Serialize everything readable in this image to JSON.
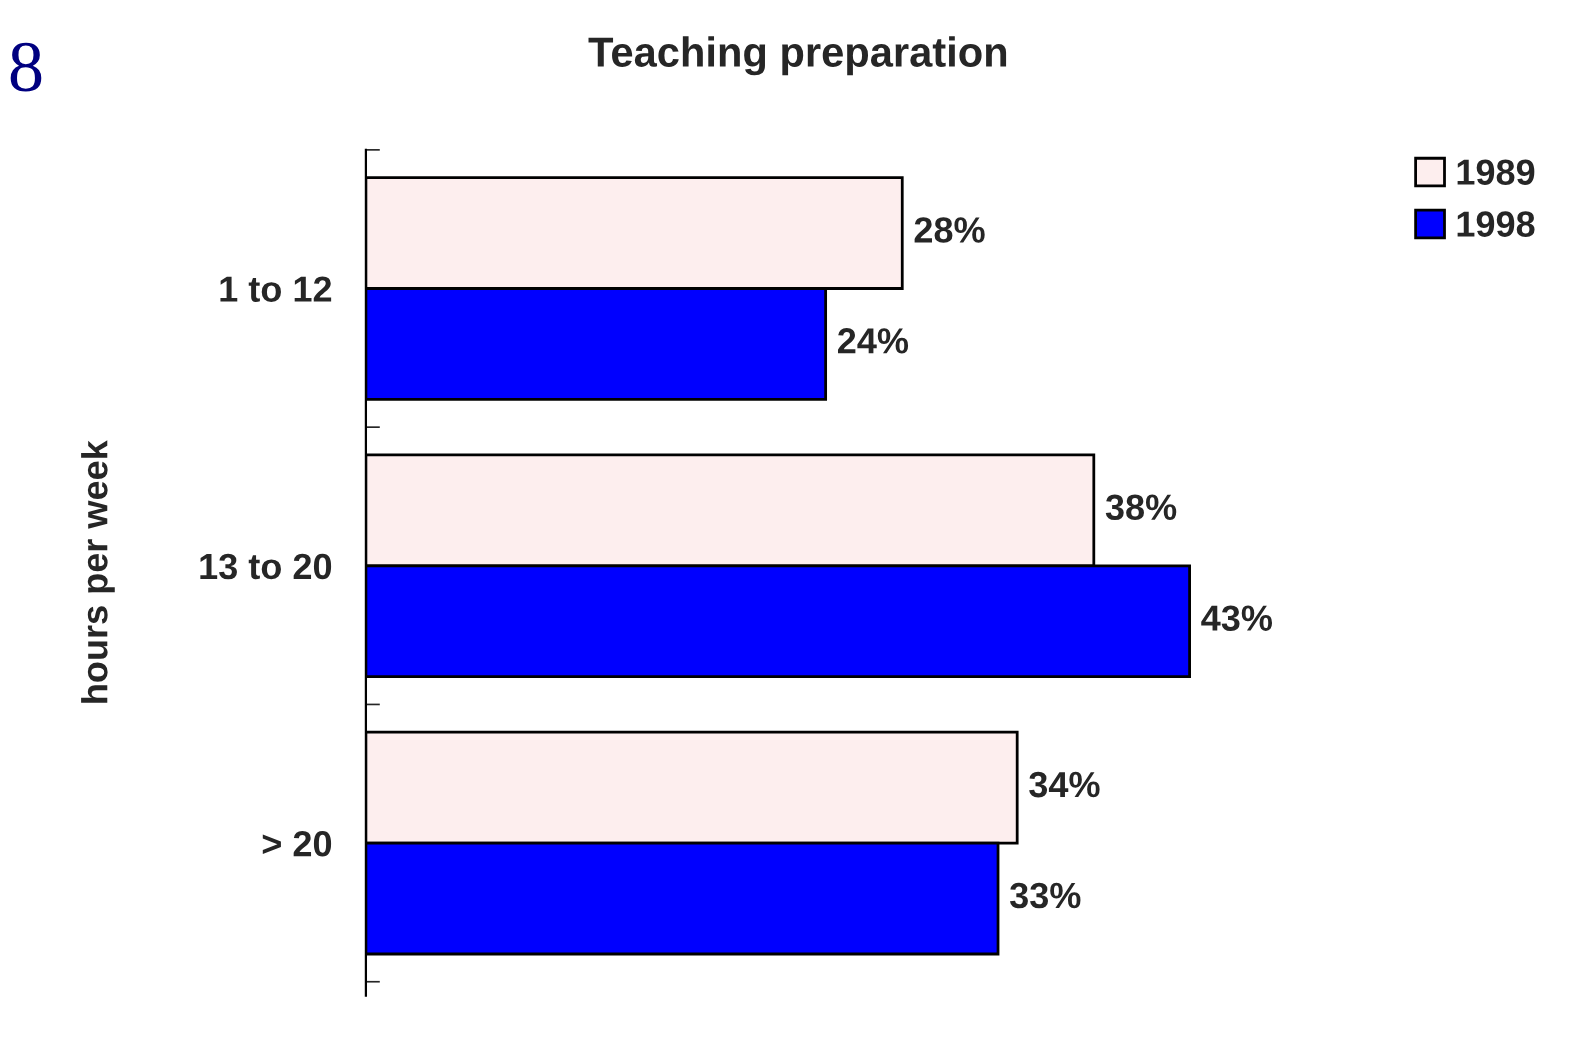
{
  "chart_data": {
    "type": "bar",
    "orientation": "horizontal",
    "title": "Teaching preparation",
    "ylabel": "hours per week",
    "categories": [
      "1 to 12",
      "13 to 20",
      "> 20"
    ],
    "series": [
      {
        "name": "1989",
        "color": "#fdeeee",
        "values": [
          28,
          38,
          34
        ],
        "value_labels": [
          "28%",
          "38%",
          "34%"
        ]
      },
      {
        "name": "1998",
        "color": "#0000ff",
        "values": [
          24,
          43,
          33
        ],
        "value_labels": [
          "24%",
          "43%",
          "33%"
        ]
      }
    ],
    "tick_labels": "y",
    "legend": "top right",
    "grid": false,
    "annotations": [
      "8"
    ]
  }
}
